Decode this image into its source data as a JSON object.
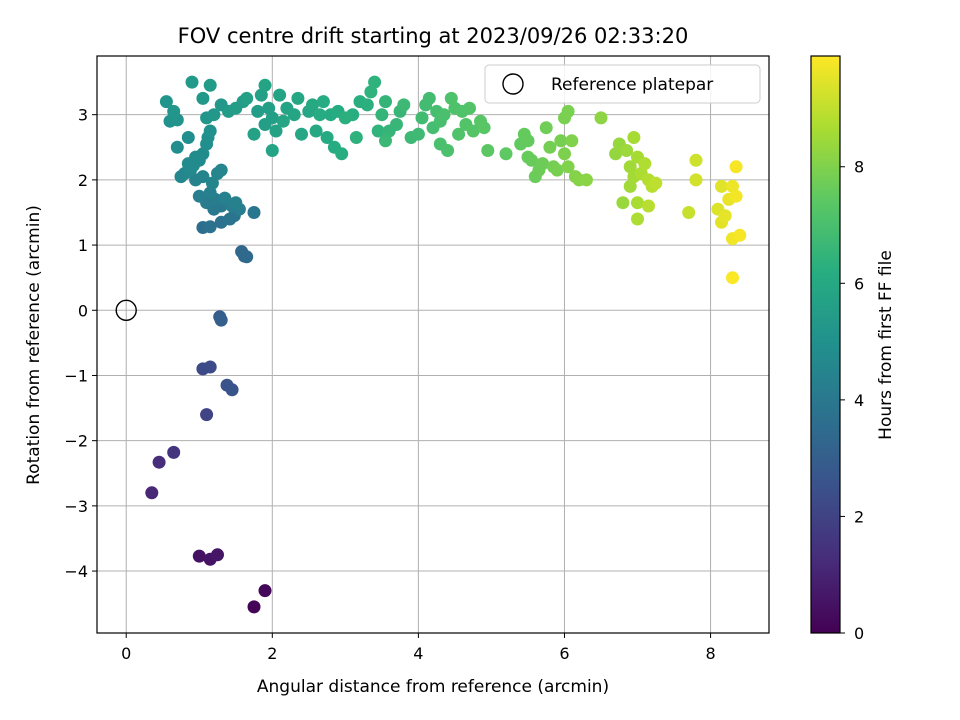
{
  "chart_data": {
    "type": "scatter",
    "title": "FOV centre drift starting at 2023/09/26 02:33:20",
    "xlabel": "Angular distance from reference (arcmin)",
    "ylabel": "Rotation from reference (arcmin)",
    "xlim": [
      -0.4,
      8.8
    ],
    "ylim": [
      -4.95,
      3.9
    ],
    "xticks": [
      0,
      2,
      4,
      6,
      8
    ],
    "yticks": [
      -4,
      -3,
      -2,
      -1,
      0,
      1,
      2,
      3
    ],
    "grid": true,
    "legend": {
      "position": "top-right",
      "entries": [
        "Reference platepar"
      ]
    },
    "reference_point": {
      "x": 0,
      "y": 0,
      "label": "Reference platepar"
    },
    "colorbar": {
      "label": "Hours from first FF file",
      "range": [
        0,
        9.9
      ],
      "ticks": [
        0,
        2,
        4,
        6,
        8
      ],
      "colormap": "viridis",
      "stops": [
        "#440154",
        "#472c7a",
        "#3b518b",
        "#2c718e",
        "#21908d",
        "#27ad81",
        "#5cc863",
        "#aadc32",
        "#fde725"
      ]
    },
    "series": [
      {
        "points": [
          [
            1.75,
            -4.55,
            0.1
          ],
          [
            1.9,
            -4.3,
            0.2
          ],
          [
            1.0,
            -3.77,
            0.5
          ],
          [
            1.15,
            -3.82,
            0.55
          ],
          [
            1.25,
            -3.75,
            0.6
          ],
          [
            0.35,
            -2.8,
            1.1
          ],
          [
            0.45,
            -2.33,
            1.3
          ],
          [
            0.65,
            -2.18,
            1.5
          ],
          [
            1.1,
            -1.6,
            2.0
          ],
          [
            1.05,
            -0.9,
            2.2
          ],
          [
            1.15,
            -0.87,
            2.3
          ],
          [
            1.38,
            -1.15,
            2.5
          ],
          [
            1.45,
            -1.22,
            2.6
          ],
          [
            1.28,
            -0.1,
            2.9
          ],
          [
            1.3,
            -0.15,
            3.0
          ],
          [
            1.58,
            0.9,
            3.3
          ],
          [
            1.62,
            0.83,
            3.4
          ],
          [
            1.65,
            0.82,
            3.45
          ],
          [
            1.05,
            1.27,
            3.6
          ],
          [
            1.15,
            1.28,
            3.7
          ],
          [
            1.3,
            1.35,
            3.75
          ],
          [
            1.42,
            1.4,
            3.8
          ],
          [
            1.48,
            1.45,
            3.85
          ],
          [
            1.75,
            1.5,
            3.9
          ],
          [
            1.2,
            1.55,
            4.0
          ],
          [
            1.3,
            1.6,
            4.05
          ],
          [
            1.1,
            1.65,
            4.1
          ],
          [
            1.22,
            1.7,
            4.15
          ],
          [
            1.45,
            1.6,
            4.2
          ],
          [
            1.55,
            1.55,
            4.2
          ],
          [
            1.0,
            1.75,
            4.25
          ],
          [
            1.15,
            1.8,
            4.3
          ],
          [
            1.35,
            1.72,
            4.3
          ],
          [
            1.5,
            1.65,
            4.35
          ],
          [
            0.95,
            2.0,
            4.4
          ],
          [
            1.05,
            2.05,
            4.45
          ],
          [
            1.18,
            1.95,
            4.5
          ],
          [
            1.25,
            2.1,
            4.5
          ],
          [
            1.3,
            2.15,
            4.55
          ],
          [
            0.75,
            2.05,
            4.6
          ],
          [
            0.8,
            2.1,
            4.6
          ],
          [
            0.88,
            2.15,
            4.65
          ],
          [
            0.92,
            2.22,
            4.7
          ],
          [
            1.0,
            2.3,
            4.7
          ],
          [
            0.85,
            2.25,
            4.75
          ],
          [
            1.05,
            2.4,
            4.8
          ],
          [
            0.95,
            2.35,
            4.8
          ],
          [
            0.7,
            2.5,
            4.85
          ],
          [
            0.85,
            2.65,
            4.9
          ],
          [
            1.1,
            2.55,
            4.9
          ],
          [
            1.12,
            2.65,
            4.95
          ],
          [
            1.15,
            2.75,
            5.0
          ],
          [
            0.6,
            2.9,
            5.05
          ],
          [
            0.7,
            2.92,
            5.1
          ],
          [
            0.55,
            3.2,
            5.15
          ],
          [
            0.65,
            3.05,
            5.2
          ],
          [
            1.1,
            2.95,
            5.2
          ],
          [
            1.2,
            3.0,
            5.25
          ],
          [
            1.3,
            3.15,
            5.3
          ],
          [
            1.05,
            3.25,
            5.3
          ],
          [
            0.9,
            3.5,
            5.35
          ],
          [
            1.15,
            3.45,
            5.4
          ],
          [
            1.4,
            3.05,
            5.4
          ],
          [
            1.5,
            3.1,
            5.45
          ],
          [
            1.6,
            3.2,
            5.5
          ],
          [
            1.8,
            3.05,
            5.5
          ],
          [
            1.9,
            2.85,
            5.55
          ],
          [
            2.0,
            2.95,
            5.6
          ],
          [
            1.95,
            3.1,
            5.6
          ],
          [
            1.85,
            3.3,
            5.65
          ],
          [
            1.65,
            3.25,
            5.65
          ],
          [
            1.75,
            2.7,
            5.7
          ],
          [
            2.05,
            2.75,
            5.7
          ],
          [
            2.0,
            2.45,
            5.75
          ],
          [
            1.9,
            3.45,
            5.75
          ],
          [
            2.1,
            3.3,
            5.8
          ],
          [
            2.2,
            3.1,
            5.8
          ],
          [
            2.15,
            2.9,
            5.85
          ],
          [
            2.3,
            3.0,
            5.85
          ],
          [
            2.4,
            2.7,
            5.9
          ],
          [
            2.5,
            3.05,
            5.9
          ],
          [
            2.35,
            3.25,
            5.95
          ],
          [
            2.55,
            3.15,
            6.0
          ],
          [
            2.6,
            2.75,
            6.0
          ],
          [
            2.75,
            2.65,
            6.05
          ],
          [
            2.8,
            3.0,
            6.05
          ],
          [
            2.65,
            3.0,
            6.1
          ],
          [
            2.7,
            3.2,
            6.1
          ],
          [
            2.9,
            3.05,
            6.15
          ],
          [
            2.85,
            2.5,
            6.15
          ],
          [
            2.95,
            2.4,
            6.2
          ],
          [
            3.1,
            3.0,
            6.2
          ],
          [
            3.2,
            3.2,
            6.25
          ],
          [
            3.3,
            3.15,
            6.3
          ],
          [
            3.0,
            2.95,
            6.3
          ],
          [
            3.15,
            2.65,
            6.35
          ],
          [
            3.35,
            3.35,
            6.4
          ],
          [
            3.4,
            3.5,
            6.4
          ],
          [
            3.45,
            2.75,
            6.45
          ],
          [
            3.5,
            3.0,
            6.5
          ],
          [
            3.55,
            3.2,
            6.5
          ],
          [
            3.6,
            2.75,
            6.55
          ],
          [
            3.7,
            2.85,
            6.6
          ],
          [
            3.75,
            3.05,
            6.6
          ],
          [
            3.55,
            2.6,
            6.65
          ],
          [
            3.8,
            3.15,
            6.7
          ],
          [
            3.9,
            2.65,
            6.7
          ],
          [
            4.0,
            2.7,
            6.75
          ],
          [
            4.05,
            2.95,
            6.8
          ],
          [
            4.1,
            3.15,
            6.85
          ],
          [
            4.15,
            3.25,
            6.85
          ],
          [
            4.2,
            2.8,
            6.9
          ],
          [
            4.25,
            3.05,
            6.9
          ],
          [
            4.3,
            2.9,
            6.95
          ],
          [
            4.35,
            3.0,
            7.0
          ],
          [
            4.3,
            2.55,
            7.0
          ],
          [
            4.4,
            2.45,
            7.05
          ],
          [
            4.45,
            3.25,
            7.1
          ],
          [
            4.5,
            3.1,
            7.1
          ],
          [
            4.55,
            2.7,
            7.15
          ],
          [
            4.6,
            3.05,
            7.15
          ],
          [
            4.65,
            2.85,
            7.2
          ],
          [
            4.7,
            3.1,
            7.2
          ],
          [
            4.75,
            2.75,
            7.25
          ],
          [
            4.85,
            2.9,
            7.3
          ],
          [
            4.9,
            2.8,
            7.35
          ],
          [
            4.95,
            2.45,
            7.4
          ],
          [
            5.2,
            2.4,
            7.45
          ],
          [
            5.4,
            2.55,
            7.5
          ],
          [
            5.45,
            2.7,
            7.55
          ],
          [
            5.5,
            2.6,
            7.55
          ],
          [
            5.55,
            2.3,
            7.6
          ],
          [
            5.5,
            2.35,
            7.6
          ],
          [
            5.6,
            2.05,
            7.65
          ],
          [
            5.65,
            2.15,
            7.7
          ],
          [
            5.7,
            2.25,
            7.7
          ],
          [
            5.75,
            2.8,
            7.75
          ],
          [
            5.8,
            2.5,
            7.8
          ],
          [
            5.85,
            2.2,
            7.8
          ],
          [
            5.9,
            2.15,
            7.85
          ],
          [
            5.95,
            2.6,
            7.85
          ],
          [
            6.0,
            2.95,
            7.9
          ],
          [
            6.05,
            3.05,
            7.9
          ],
          [
            6.0,
            2.4,
            7.95
          ],
          [
            6.05,
            2.2,
            8.0
          ],
          [
            6.1,
            2.6,
            8.0
          ],
          [
            6.15,
            2.05,
            8.05
          ],
          [
            6.2,
            2.0,
            8.1
          ],
          [
            6.3,
            2.0,
            8.15
          ],
          [
            6.5,
            2.95,
            8.2
          ],
          [
            6.7,
            2.4,
            8.3
          ],
          [
            6.75,
            2.55,
            8.35
          ],
          [
            6.8,
            1.65,
            8.4
          ],
          [
            6.85,
            2.45,
            8.45
          ],
          [
            6.9,
            2.2,
            8.5
          ],
          [
            6.9,
            1.9,
            8.5
          ],
          [
            6.95,
            2.05,
            8.55
          ],
          [
            6.95,
            2.65,
            8.6
          ],
          [
            7.0,
            2.35,
            8.6
          ],
          [
            7.0,
            1.65,
            8.65
          ],
          [
            7.05,
            2.1,
            8.7
          ],
          [
            7.0,
            1.4,
            8.7
          ],
          [
            7.1,
            2.25,
            8.75
          ],
          [
            7.15,
            2.0,
            8.8
          ],
          [
            7.15,
            1.6,
            8.85
          ],
          [
            7.2,
            1.9,
            8.9
          ],
          [
            7.25,
            1.95,
            8.95
          ],
          [
            7.7,
            1.5,
            9.1
          ],
          [
            7.8,
            2.3,
            9.2
          ],
          [
            7.8,
            2.0,
            9.25
          ],
          [
            8.1,
            1.55,
            9.4
          ],
          [
            8.15,
            1.9,
            9.45
          ],
          [
            8.15,
            1.35,
            9.5
          ],
          [
            8.2,
            1.45,
            9.55
          ],
          [
            8.25,
            1.7,
            9.6
          ],
          [
            8.3,
            1.9,
            9.65
          ],
          [
            8.3,
            1.1,
            9.7
          ],
          [
            8.35,
            1.75,
            9.75
          ],
          [
            8.4,
            1.15,
            9.8
          ],
          [
            8.35,
            2.2,
            9.8
          ],
          [
            8.3,
            0.5,
            9.85
          ]
        ]
      }
    ]
  }
}
